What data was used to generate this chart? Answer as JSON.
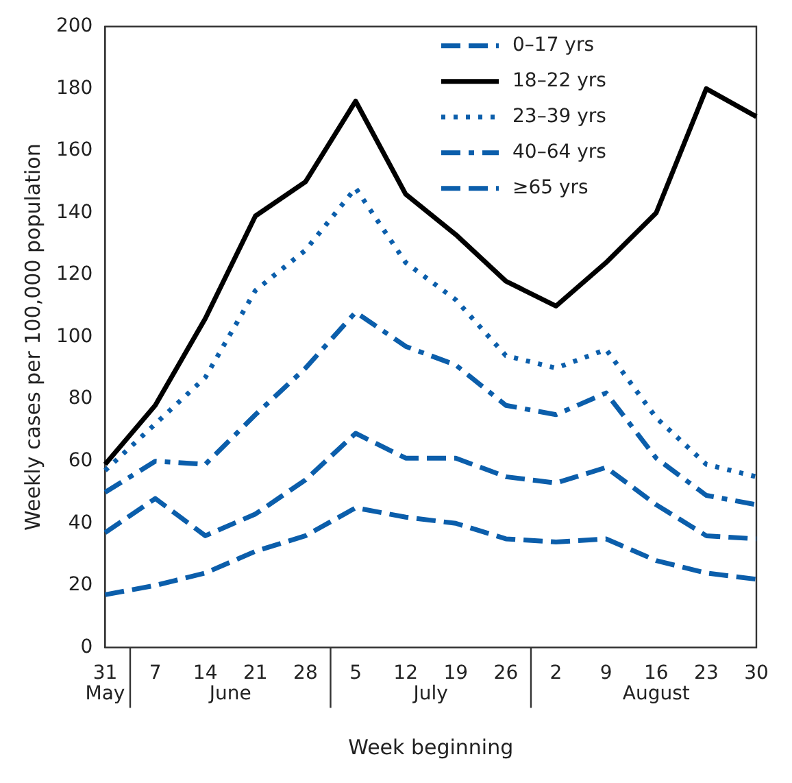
{
  "chart_data": {
    "type": "line",
    "xlabel": "Week beginning",
    "ylabel": "Weekly cases per 100,000 population",
    "categories": [
      "31",
      "7",
      "14",
      "21",
      "28",
      "5",
      "12",
      "19",
      "26",
      "2",
      "9",
      "16",
      "23",
      "30"
    ],
    "annotations": [
      "May",
      "June",
      "July",
      "August"
    ],
    "series": [
      {
        "name": "0–17 yrs",
        "color": "#0b5eab",
        "line_style": "dashed",
        "values": [
          17,
          20,
          24,
          31,
          36,
          45,
          42,
          40,
          35,
          34,
          35,
          28,
          24,
          22
        ]
      },
      {
        "name": "18–22 yrs",
        "color": "#000000",
        "line_style": "solid",
        "values": [
          59,
          78,
          106,
          139,
          150,
          176,
          146,
          133,
          118,
          110,
          124,
          140,
          180,
          171
        ]
      },
      {
        "name": "23–39 yrs",
        "color": "#0b5eab",
        "line_style": "dotted",
        "values": [
          57,
          72,
          87,
          115,
          128,
          148,
          124,
          112,
          94,
          90,
          96,
          74,
          59,
          55
        ]
      },
      {
        "name": "40–64 yrs",
        "color": "#0b5eab",
        "line_style": "dashdot",
        "values": [
          50,
          60,
          59,
          75,
          90,
          108,
          97,
          91,
          78,
          75,
          82,
          61,
          49,
          46
        ]
      },
      {
        "name": "≥65 yrs",
        "color": "#0b5eab",
        "line_style": "dashed",
        "values": [
          37,
          48,
          36,
          43,
          54,
          69,
          61,
          61,
          55,
          53,
          58,
          46,
          36,
          35
        ]
      }
    ],
    "ylim": [
      0,
      200
    ],
    "yticks": [
      0,
      20,
      40,
      60,
      80,
      100,
      120,
      140,
      160,
      180,
      200
    ],
    "grid": false,
    "legend": "top right",
    "marker": "none"
  }
}
